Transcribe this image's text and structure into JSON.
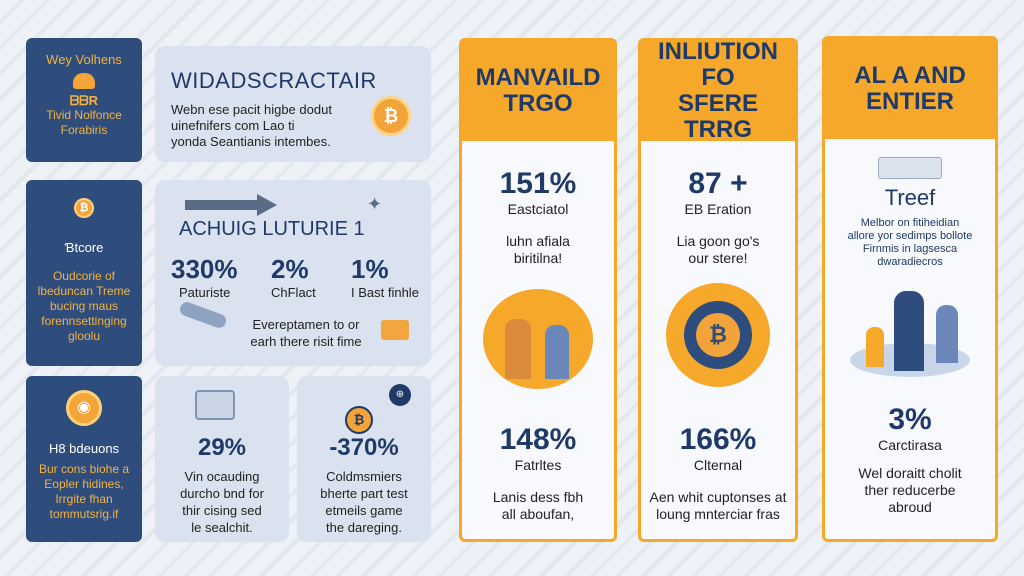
{
  "left_cards": [
    {
      "title": "Wey Volhens",
      "badge": "ᗷᗷR",
      "line1": "Tivid Nolfonce",
      "line2": "Forabiris"
    },
    {
      "title": "Ɓtcore",
      "body": "Oudcorie of lbeduncan Treme bucing maus forennsettinging gloolu"
    },
    {
      "title": "H8 bdeuons",
      "body": "Bur cons biohe a Eopler hidines, Irrgite fhan tommutsrig.if"
    }
  ],
  "hero": {
    "title": "WIDADSCRACTAIR",
    "text_line1": "Webn ese pacit higbe dodut",
    "text_line2": "uinefnifers com Lao ti",
    "text_line3": "yonda Seantianis intembes."
  },
  "stats_card": {
    "title": "ACHUIG LUTURIE 1",
    "stats": [
      {
        "value": "330%",
        "label": "Paturiste"
      },
      {
        "value": "2%",
        "label": "ChFlact"
      },
      {
        "value": "1%",
        "label": "I Bast finhle"
      }
    ],
    "footer_line1": "Evereptamen to or",
    "footer_line2": "earh there risit fime"
  },
  "bottom_cards": [
    {
      "value": "29%",
      "line1": "Vin ocauding",
      "line2": "durcho bnd for",
      "line3": "thir cising sed",
      "line4": "le sealchit."
    },
    {
      "value": "-370%",
      "line1": "Coldmsmiers",
      "line2": "bherte part test",
      "line3": "etmeils game",
      "line4": "the dareging."
    }
  ],
  "columns": [
    {
      "header_line1": "MANVAILD",
      "header_line2": "TRGO",
      "stat1": {
        "value": "151%",
        "label": "Eastciatol"
      },
      "text1_line1": "luhn afiala",
      "text1_line2": "biritilna!",
      "stat2": {
        "value": "148%",
        "label": "Fatrltes"
      },
      "text2_line1": "Lanis dess fbh",
      "text2_line2": "all aboufan,"
    },
    {
      "header_line1": "INLIUTION FO",
      "header_line2": "SFERE TRRG",
      "stat1": {
        "value": "87 +",
        "label": "EB Eration"
      },
      "text1_line1": "Lia goon go's",
      "text1_line2": "our stere!",
      "stat2": {
        "value": "166%",
        "label": "Clternal"
      },
      "text2_line1": "Aen whit cuptonses at",
      "text2_line2": "loung mnterciar fras"
    },
    {
      "header_line1": "AL A AND",
      "header_line2": "ENTIER",
      "subtitle": "Treef",
      "text1_line1": "Melbor on fitiheidian",
      "text1_line2": "allore yor sedimps bollote",
      "text1_line3": "Firnmis in lagsesca",
      "text1_line4": "dwaradiecros",
      "stat2": {
        "value": "3%",
        "label": "Carctirasa"
      },
      "text2_line1": "Wel doraitt cholit",
      "text2_line2": "ther reducerbe",
      "text2_line3": "abroud"
    }
  ],
  "colors": {
    "navy": "#2f4d7c",
    "orange": "#f5a82a",
    "dark_text": "#1f3a68"
  }
}
